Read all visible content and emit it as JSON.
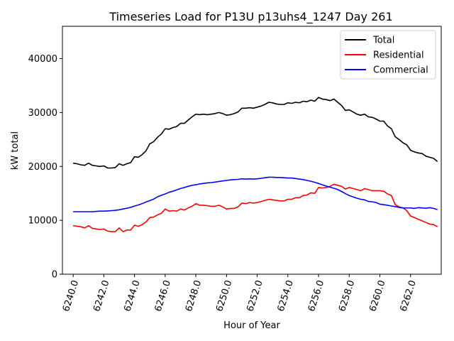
{
  "chart_data": {
    "type": "line",
    "title": "Timeseries Load for P13U p13uhs4_1247  Day 261",
    "xlabel": "Hour of Year",
    "ylabel": "kW total",
    "xlim": [
      6239.3,
      6264.0
    ],
    "ylim": [
      0,
      46000
    ],
    "xticks": [
      6240,
      6242,
      6244,
      6246,
      6248,
      6250,
      6252,
      6254,
      6256,
      6258,
      6260,
      6262
    ],
    "xtick_labels": [
      "6240.0",
      "6242.0",
      "6244.0",
      "6246.0",
      "6248.0",
      "6250.0",
      "6252.0",
      "6254.0",
      "6256.0",
      "6258.0",
      "6260.0",
      "6262.0"
    ],
    "yticks": [
      0,
      10000,
      20000,
      30000,
      40000
    ],
    "ytick_labels": [
      "0",
      "10000",
      "20000",
      "30000",
      "40000"
    ],
    "legend_position": "top-right",
    "grid": false,
    "x": [
      6240.0,
      6240.25,
      6240.5,
      6240.75,
      6241.0,
      6241.25,
      6241.5,
      6241.75,
      6242.0,
      6242.25,
      6242.5,
      6242.75,
      6243.0,
      6243.25,
      6243.5,
      6243.75,
      6244.0,
      6244.25,
      6244.5,
      6244.75,
      6245.0,
      6245.25,
      6245.5,
      6245.75,
      6246.0,
      6246.25,
      6246.5,
      6246.75,
      6247.0,
      6247.25,
      6247.5,
      6247.75,
      6248.0,
      6248.25,
      6248.5,
      6248.75,
      6249.0,
      6249.25,
      6249.5,
      6249.75,
      6250.0,
      6250.25,
      6250.5,
      6250.75,
      6251.0,
      6251.25,
      6251.5,
      6251.75,
      6252.0,
      6252.25,
      6252.5,
      6252.75,
      6253.0,
      6253.25,
      6253.5,
      6253.75,
      6254.0,
      6254.25,
      6254.5,
      6254.75,
      6255.0,
      6255.25,
      6255.5,
      6255.75,
      6256.0,
      6256.25,
      6256.5,
      6256.75,
      6257.0,
      6257.25,
      6257.5,
      6257.75,
      6258.0,
      6258.25,
      6258.5,
      6258.75,
      6259.0,
      6259.25,
      6259.5,
      6259.75,
      6260.0,
      6260.25,
      6260.5,
      6260.75,
      6261.0,
      6261.25,
      6261.5,
      6261.75,
      6262.0,
      6262.25,
      6262.5,
      6262.75,
      6263.0,
      6263.25,
      6263.5,
      6263.75
    ],
    "series": [
      {
        "name": "Total",
        "color": "#000000",
        "values": [
          20600,
          20500,
          20300,
          20200,
          20600,
          20200,
          20100,
          20000,
          20100,
          19700,
          19700,
          19800,
          20500,
          20200,
          20500,
          20700,
          21800,
          21700,
          22200,
          22900,
          24200,
          24600,
          25400,
          26000,
          27000,
          26900,
          27200,
          27400,
          28000,
          28000,
          28600,
          29200,
          29700,
          29600,
          29700,
          29600,
          29700,
          29800,
          30000,
          29800,
          29500,
          29600,
          29800,
          30100,
          30800,
          30800,
          30900,
          30800,
          31000,
          31200,
          31500,
          31900,
          31800,
          31600,
          31500,
          31500,
          31800,
          31700,
          31900,
          31800,
          32100,
          32000,
          32300,
          32100,
          32800,
          32500,
          32400,
          32200,
          32500,
          31900,
          31300,
          30400,
          30500,
          30100,
          29700,
          29500,
          29700,
          29200,
          29100,
          28800,
          28400,
          28400,
          27500,
          27000,
          25500,
          25000,
          24400,
          24000,
          23000,
          22700,
          22500,
          22400,
          21900,
          21700,
          21500,
          20900
        ]
      },
      {
        "name": "Residential",
        "color": "#ff0000",
        "values": [
          9000,
          8900,
          8800,
          8600,
          9000,
          8500,
          8400,
          8300,
          8400,
          8000,
          7900,
          7900,
          8600,
          7900,
          8200,
          8200,
          9100,
          8900,
          9200,
          9700,
          10500,
          10600,
          11000,
          11300,
          12100,
          11700,
          11800,
          11700,
          12100,
          11900,
          12300,
          12600,
          13100,
          12800,
          12800,
          12700,
          12600,
          12600,
          12800,
          12500,
          12100,
          12200,
          12200,
          12500,
          13200,
          13100,
          13300,
          13200,
          13300,
          13500,
          13700,
          13900,
          13800,
          13700,
          13600,
          13600,
          13900,
          13900,
          14200,
          14200,
          14600,
          14700,
          15100,
          15000,
          16100,
          16000,
          16100,
          16300,
          16700,
          16500,
          16300,
          15800,
          16100,
          15900,
          15700,
          15500,
          15900,
          15700,
          15500,
          15500,
          15500,
          15400,
          14900,
          14600,
          12900,
          12500,
          12300,
          11800,
          10800,
          10500,
          10200,
          9900,
          9600,
          9300,
          9200,
          8800
        ]
      },
      {
        "name": "Commercial",
        "color": "#0000ff",
        "values": [
          11600,
          11600,
          11600,
          11600,
          11600,
          11600,
          11650,
          11700,
          11700,
          11750,
          11800,
          11850,
          11950,
          12100,
          12250,
          12400,
          12650,
          12850,
          13100,
          13400,
          13650,
          13950,
          14350,
          14650,
          14900,
          15200,
          15400,
          15650,
          15900,
          16100,
          16300,
          16500,
          16600,
          16750,
          16850,
          16950,
          17000,
          17100,
          17200,
          17300,
          17400,
          17500,
          17550,
          17600,
          17700,
          17650,
          17700,
          17650,
          17700,
          17800,
          17900,
          18000,
          18000,
          17950,
          17950,
          17900,
          17850,
          17850,
          17750,
          17650,
          17550,
          17400,
          17250,
          17050,
          16850,
          16600,
          16350,
          16150,
          15950,
          15700,
          15350,
          14950,
          14600,
          14350,
          14100,
          13900,
          13800,
          13500,
          13450,
          13300,
          13000,
          12900,
          12800,
          12650,
          12550,
          12400,
          12300,
          12300,
          12300,
          12200,
          12350,
          12300,
          12250,
          12350,
          12200,
          12000
        ]
      }
    ]
  }
}
